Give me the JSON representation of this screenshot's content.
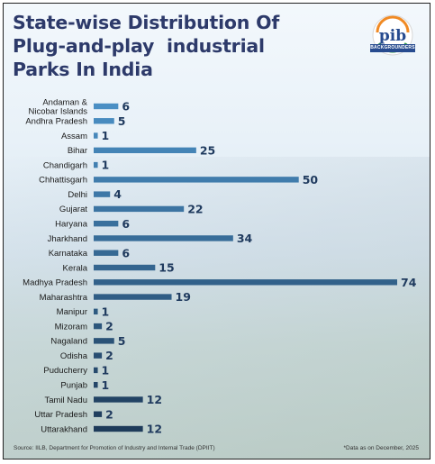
{
  "title_lines": [
    "State-wise Distribution Of",
    "Plug-and-play  industrial",
    "Parks In India"
  ],
  "logo": {
    "name": "pib-backgrounders-logo",
    "text": "pib",
    "badge": "BACKGROUNDERS"
  },
  "source": "Source: IILB, Department for Promotion of Industry and Internal Trade (DPIIT)",
  "note": "*Data as on December, 2025",
  "colors": {
    "title": "#2d3a6a",
    "bar_top": "#4a8fc4",
    "bar_bottom": "#1e3b5a",
    "label": "#1a1a1a",
    "value": "#1f3a5e"
  },
  "chart_data": {
    "type": "bar",
    "orientation": "horizontal",
    "categories": [
      "Andaman &\nNicobar Islands",
      "Andhra Pradesh",
      "Assam",
      "Bihar",
      "Chandigarh",
      "Chhattisgarh",
      "Delhi",
      "Gujarat",
      "Haryana",
      "Jharkhand",
      "Karnataka",
      "Kerala",
      "Madhya Pradesh",
      "Maharashtra",
      "Manipur",
      "Mizoram",
      "Nagaland",
      "Odisha",
      "Puducherry",
      "Punjab",
      "Tamil Nadu",
      "Uttar Pradesh",
      "Uttarakhand"
    ],
    "values": [
      6,
      5,
      1,
      25,
      1,
      50,
      4,
      22,
      6,
      34,
      6,
      15,
      74,
      19,
      1,
      2,
      5,
      2,
      1,
      1,
      12,
      2,
      12
    ],
    "xlim": [
      0,
      74
    ],
    "grid": false,
    "title": "State-wise Distribution Of Plug-and-play  industrial Parks In India"
  }
}
